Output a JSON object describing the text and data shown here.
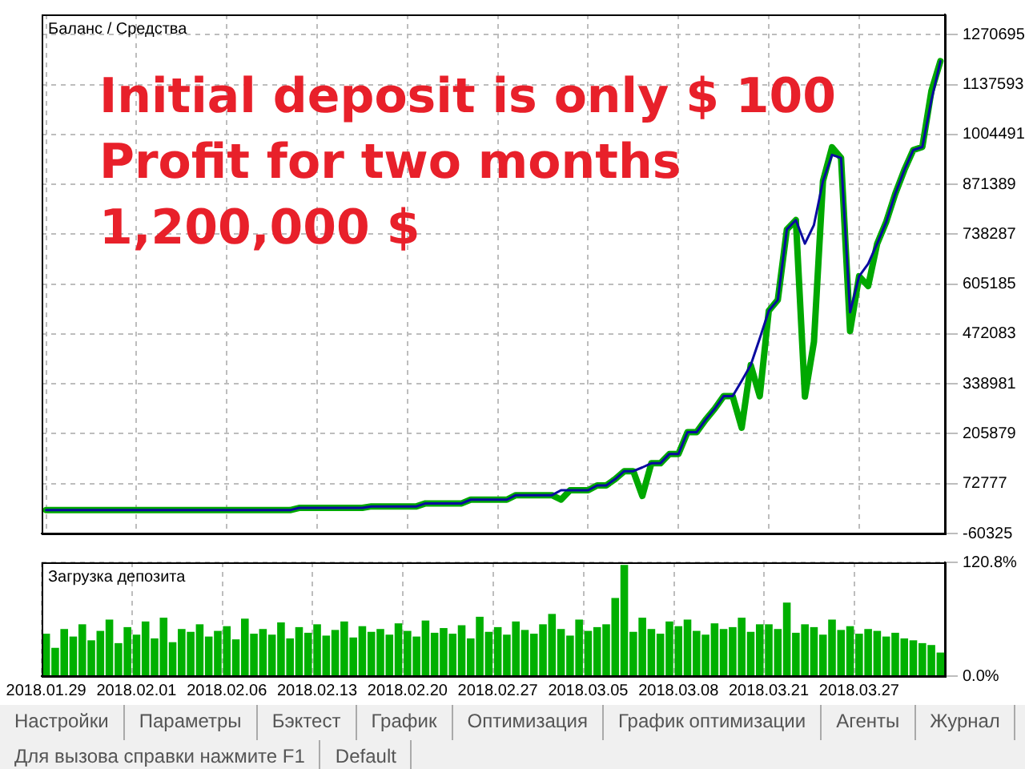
{
  "chart_data": [
    {
      "type": "line",
      "title": "Баланс / Средства",
      "categories": [
        "2018.01.29",
        null,
        null,
        null,
        null,
        null,
        null,
        null,
        null,
        null,
        "2018.02.01",
        null,
        null,
        null,
        null,
        null,
        null,
        null,
        null,
        null,
        "2018.02.06",
        null,
        null,
        null,
        null,
        null,
        null,
        null,
        null,
        null,
        "2018.02.13",
        null,
        null,
        null,
        null,
        null,
        null,
        null,
        null,
        null,
        "2018.02.20",
        null,
        null,
        null,
        null,
        null,
        null,
        null,
        null,
        null,
        "2018.02.27",
        null,
        null,
        null,
        null,
        null,
        null,
        null,
        null,
        null,
        "2018.03.05",
        null,
        null,
        null,
        null,
        null,
        null,
        null,
        null,
        null,
        "2018.03.08",
        null,
        null,
        null,
        null,
        null,
        null,
        null,
        null,
        null,
        "2018.03.21",
        null,
        null,
        null,
        null,
        null,
        null,
        null,
        null,
        null,
        "2018.03.27",
        null,
        null,
        null,
        null,
        null,
        null,
        null,
        null,
        null
      ],
      "series": [
        {
          "color": "#00a800",
          "values": [
            2000,
            2000,
            2000,
            2000,
            2000,
            2000,
            2000,
            2000,
            2000,
            2000,
            2000,
            2000,
            2000,
            2000,
            2000,
            2000,
            2000,
            2000,
            2000,
            2000,
            2000,
            2000,
            2000,
            2000,
            2000,
            2000,
            2000,
            2000,
            8000,
            8000,
            8000,
            8000,
            8000,
            8000,
            8000,
            8000,
            12000,
            12000,
            12000,
            12000,
            12000,
            12000,
            20000,
            20000,
            20000,
            20000,
            20000,
            30000,
            30000,
            30000,
            30000,
            30000,
            42000,
            42000,
            42000,
            42000,
            42000,
            30000,
            55000,
            55000,
            55000,
            68000,
            68000,
            85000,
            106000,
            106000,
            40000,
            127000,
            127000,
            152000,
            152000,
            210000,
            210000,
            243000,
            272000,
            306000,
            306000,
            222000,
            389000,
            306000,
            534000,
            563000,
            751000,
            776000,
            305000,
            451000,
            880000,
            970000,
            942000,
            480000,
            626000,
            600000,
            713000,
            771000,
            846000,
            909000,
            963000,
            971000,
            1120000,
            1200000
          ]
        },
        {
          "color": "#0a0aa0",
          "values": [
            2000,
            2000,
            2000,
            2000,
            2000,
            2000,
            2000,
            2000,
            2000,
            2000,
            2000,
            2000,
            2000,
            2000,
            2000,
            2000,
            2000,
            2000,
            2000,
            2000,
            2000,
            2000,
            2000,
            2000,
            2000,
            2000,
            2000,
            2000,
            8000,
            8000,
            8000,
            8000,
            8000,
            8000,
            8000,
            8000,
            12000,
            12000,
            12000,
            12000,
            12000,
            12000,
            20000,
            20000,
            20000,
            20000,
            20000,
            30000,
            30000,
            30000,
            30000,
            30000,
            42000,
            42000,
            42000,
            42000,
            42000,
            55000,
            55000,
            55000,
            55000,
            68000,
            68000,
            85000,
            106000,
            106000,
            116000,
            127000,
            127000,
            152000,
            152000,
            210000,
            210000,
            243000,
            272000,
            306000,
            306000,
            347000,
            389000,
            460000,
            534000,
            563000,
            751000,
            776000,
            713000,
            763000,
            880000,
            950000,
            942000,
            530000,
            626000,
            659000,
            713000,
            771000,
            846000,
            909000,
            963000,
            971000,
            1096000,
            1200000
          ]
        }
      ],
      "ylim": [
        -60325,
        1324700
      ],
      "yticks": [
        -60325,
        72777,
        205879,
        338981,
        472083,
        605185,
        738287,
        871389,
        1004491,
        1137593,
        1270695
      ],
      "grid": true,
      "tick_labels": "y",
      "annotations": [
        "Initial deposit is only $ 100",
        "Profit for two months",
        "1,200,000 $"
      ]
    },
    {
      "type": "bar",
      "title": "Загрузка депозита",
      "categories": [
        "2018.01.29",
        null,
        null,
        null,
        null,
        null,
        null,
        null,
        null,
        null,
        "2018.02.01",
        null,
        null,
        null,
        null,
        null,
        null,
        null,
        null,
        null,
        "2018.02.06",
        null,
        null,
        null,
        null,
        null,
        null,
        null,
        null,
        null,
        "2018.02.13",
        null,
        null,
        null,
        null,
        null,
        null,
        null,
        null,
        null,
        "2018.02.20",
        null,
        null,
        null,
        null,
        null,
        null,
        null,
        null,
        null,
        "2018.02.27",
        null,
        null,
        null,
        null,
        null,
        null,
        null,
        null,
        null,
        "2018.03.05",
        null,
        null,
        null,
        null,
        null,
        null,
        null,
        null,
        null,
        "2018.03.08",
        null,
        null,
        null,
        null,
        null,
        null,
        null,
        null,
        null,
        "2018.03.21",
        null,
        null,
        null,
        null,
        null,
        null,
        null,
        null,
        null,
        "2018.03.27",
        null,
        null,
        null,
        null,
        null,
        null,
        null,
        null,
        null
      ],
      "color": "#00b000",
      "values": [
        45,
        30,
        50,
        42,
        55,
        38,
        48,
        60,
        35,
        52,
        44,
        58,
        40,
        62,
        36,
        50,
        47,
        55,
        42,
        48,
        53,
        39,
        61,
        45,
        50,
        44,
        57,
        40,
        52,
        46,
        55,
        43,
        49,
        58,
        41,
        53,
        47,
        50,
        44,
        56,
        48,
        42,
        59,
        46,
        51,
        45,
        54,
        40,
        63,
        47,
        52,
        44,
        58,
        49,
        45,
        55,
        66,
        50,
        43,
        60,
        48,
        52,
        55,
        83,
        118,
        47,
        62,
        50,
        45,
        58,
        53,
        60,
        48,
        44,
        56,
        50,
        52,
        62,
        47,
        55,
        55,
        50,
        78,
        46,
        55,
        52,
        44,
        60,
        49,
        53,
        45,
        50,
        48,
        42,
        46,
        40,
        38,
        35,
        33,
        25
      ],
      "ylim": [
        0,
        120.8
      ],
      "yticks": [
        {
          "value": 0,
          "label": "0.0%"
        },
        {
          "value": 120.8,
          "label": "120.8%"
        }
      ],
      "grid": true,
      "annotations": [
        "Настройки",
        "Параметры",
        "Бэктест",
        "График",
        "Оптимизация",
        "График оптимизации",
        "Агенты",
        "Журнал",
        "Для вызова справки нажмите F1",
        "Default"
      ]
    }
  ]
}
